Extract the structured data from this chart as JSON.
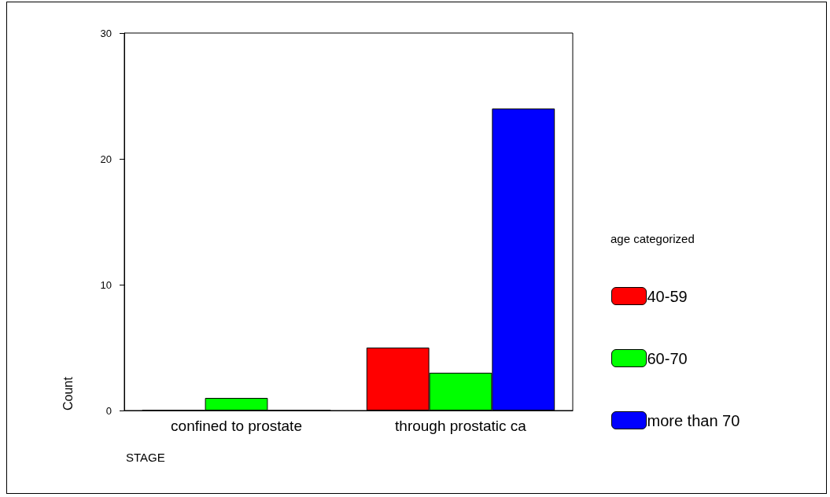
{
  "chart_data": {
    "type": "bar",
    "xlabel": "STAGE",
    "ylabel": "Count",
    "legend_title": "age categorized",
    "categories": [
      "confined to prostate",
      "through prostatic ca"
    ],
    "series": [
      {
        "name": "40-59",
        "color": "#ff0000",
        "values": [
          0,
          5
        ]
      },
      {
        "name": "60-70",
        "color": "#00ff00",
        "values": [
          1,
          3
        ]
      },
      {
        "name": "more than 70",
        "color": "#0000ff",
        "values": [
          0,
          24
        ]
      }
    ],
    "ylim": [
      0,
      30
    ],
    "yticks": [
      0,
      10,
      20,
      30
    ],
    "grid": false,
    "legend": "right"
  }
}
